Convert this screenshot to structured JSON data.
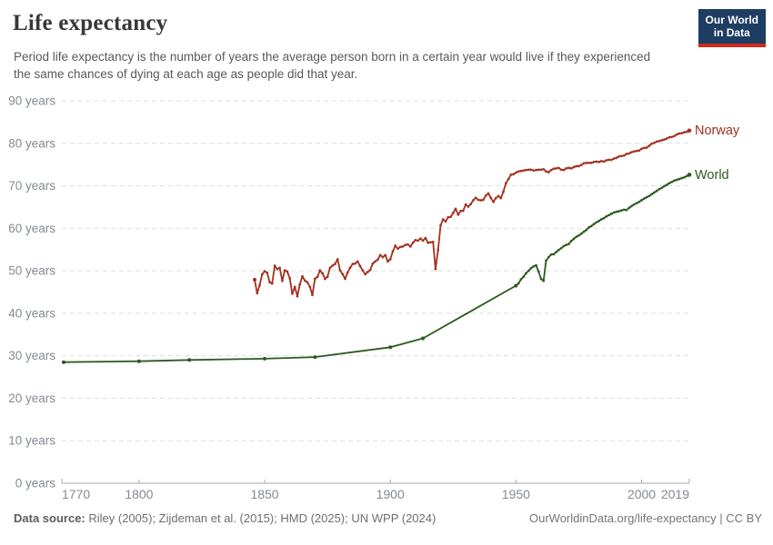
{
  "header": {
    "title": "Life expectancy",
    "logo": {
      "line1": "Our World",
      "line2": "in Data"
    }
  },
  "subtitle": "Period life expectancy is the number of years the average person born in a certain year would live if they experienced the same chances of dying at each age as people did that year.",
  "footer": {
    "sources_label": "Data source:",
    "sources_text": " Riley (2005); Zijdeman et al. (2015); HMD (2025); UN WPP (2024)",
    "link": "OurWorldinData.org/life-expectancy | CC BY"
  },
  "colors": {
    "norway": "#A2311F",
    "world": "#2C5A1E",
    "grid": "#dedede",
    "axis": "#a8a8a8",
    "tick_text": "#838a91",
    "logo_bg": "#1d3d63",
    "logo_stripe": "#d0291d"
  },
  "chart_data": {
    "type": "line",
    "title": "Life expectancy",
    "x_axis": {
      "range": [
        1770,
        2019
      ],
      "ticks": [
        1770,
        1800,
        1850,
        1900,
        1950,
        2000,
        2019
      ]
    },
    "y_axis": {
      "range": [
        0,
        90
      ],
      "tick_step": 10,
      "tick_suffix": " years",
      "grid": "dashed"
    },
    "series": [
      {
        "name": "Norway",
        "color": "#A2311F",
        "start_year": 1846,
        "values": [
          47.9,
          44.7,
          46.6,
          49.2,
          49.9,
          49.5,
          47.3,
          47.0,
          51.2,
          50.4,
          50.7,
          47.6,
          50.1,
          49.8,
          48.2,
          44.6,
          46.2,
          44.0,
          46.8,
          48.7,
          47.7,
          47.3,
          46.2,
          44.3,
          48.1,
          48.6,
          50.1,
          49.4,
          48.1,
          48.6,
          50.7,
          51.2,
          51.6,
          52.7,
          50.1,
          49.2,
          48.1,
          49.6,
          50.7,
          51.6,
          51.7,
          52.2,
          51.1,
          50.1,
          49.2,
          49.7,
          50.2,
          51.7,
          52.2,
          52.6,
          53.7,
          53.2,
          53.7,
          52.2,
          52.7,
          54.6,
          55.9,
          55.2,
          55.6,
          55.7,
          56.1,
          56.2,
          55.7,
          56.6,
          57.2,
          57.1,
          57.6,
          57.1,
          57.7,
          56.6,
          56.7,
          56.8,
          50.4,
          54.9,
          60.7,
          62.1,
          61.6,
          62.6,
          62.7,
          63.6,
          64.6,
          63.2,
          64.1,
          64.1,
          65.6,
          65.1,
          65.7,
          66.6,
          67.2,
          66.7,
          66.6,
          66.7,
          67.7,
          68.2,
          67.2,
          66.2,
          67.1,
          67.6,
          67.1,
          68.6,
          70.6,
          71.6,
          72.6,
          72.7,
          73.1,
          73.4,
          73.5,
          73.6,
          73.7,
          73.8,
          73.8,
          73.6,
          73.7,
          73.8,
          73.8,
          73.9,
          73.4,
          73.2,
          73.7,
          74.0,
          74.1,
          74.2,
          73.8,
          73.7,
          74.1,
          74.2,
          74.1,
          74.4,
          74.6,
          74.6,
          74.9,
          75.3,
          75.4,
          75.4,
          75.4,
          75.6,
          75.7,
          75.6,
          75.8,
          75.7,
          76.0,
          76.1,
          76.1,
          76.4,
          76.6,
          76.9,
          77.0,
          77.1,
          77.5,
          77.6,
          77.9,
          78.1,
          78.2,
          78.3,
          78.7,
          78.9,
          79.0,
          79.4,
          79.9,
          80.1,
          80.4,
          80.5,
          80.7,
          80.9,
          81.1,
          81.4,
          81.5,
          81.7,
          82.1,
          82.3,
          82.4,
          82.6,
          82.7,
          83.0
        ]
      },
      {
        "name": "World",
        "color": "#2C5A1E",
        "points": [
          [
            1770,
            28.5
          ],
          [
            1800,
            28.7
          ],
          [
            1820,
            29.0
          ],
          [
            1850,
            29.3
          ],
          [
            1870,
            29.7
          ],
          [
            1900,
            32.0
          ],
          [
            1913,
            34.1
          ]
        ],
        "start_year": 1950,
        "values": [
          46.5,
          47.0,
          48.0,
          48.6,
          49.4,
          50.0,
          50.6,
          51.0,
          51.3,
          49.8,
          48.1,
          47.6,
          52.4,
          53.2,
          53.8,
          53.9,
          54.4,
          54.9,
          55.3,
          55.8,
          56.1,
          56.3,
          57.0,
          57.5,
          58.0,
          58.3,
          58.7,
          59.2,
          59.6,
          60.2,
          60.5,
          61.0,
          61.4,
          61.7,
          62.1,
          62.4,
          62.8,
          63.1,
          63.4,
          63.7,
          63.9,
          64.0,
          64.2,
          64.4,
          64.3,
          64.8,
          65.2,
          65.6,
          65.9,
          66.2,
          66.6,
          67.0,
          67.3,
          67.6,
          68.0,
          68.4,
          68.8,
          69.2,
          69.5,
          69.9,
          70.2,
          70.6,
          70.9,
          71.2,
          71.4,
          71.6,
          71.8,
          72.0,
          72.3,
          72.6
        ]
      }
    ]
  }
}
